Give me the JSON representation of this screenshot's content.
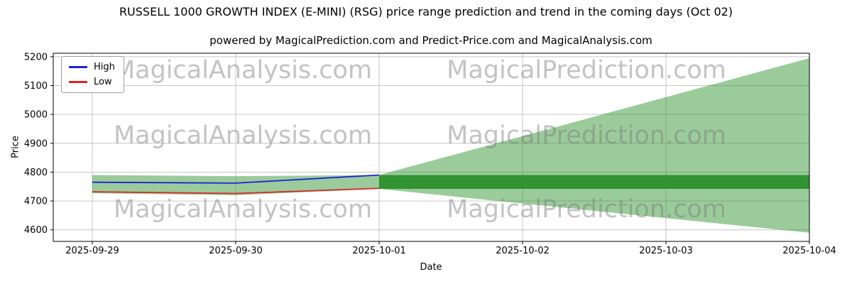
{
  "title": "RUSSELL 1000 GROWTH INDEX (E-MINI) (RSG) price range prediction and trend in the coming days (Oct 02)",
  "subtitle": "powered by MagicalPrediction.com and Predict-Price.com and MagicalAnalysis.com",
  "watermarks": {
    "left": "MagicalAnalysis.com",
    "right": "MagicalPrediction.com"
  },
  "colors": {
    "high_line": "#1c24d8",
    "low_line": "#d62728",
    "range_green": "#228b22",
    "grid": "#c6c6c6",
    "axis": "#000000"
  },
  "chart_data": {
    "type": "line",
    "xlabel": "Date",
    "ylabel": "Price",
    "x_labels": [
      "2025-09-29",
      "2025-09-30",
      "2025-10-01",
      "2025-10-02",
      "2025-10-03",
      "2025-10-04"
    ],
    "y_ticks": [
      4600,
      4700,
      4800,
      4900,
      5000,
      5100,
      5200
    ],
    "ylim": [
      4560,
      5212
    ],
    "grid": true,
    "legend_position": "upper left",
    "series": [
      {
        "name": "High",
        "color": "#1c24d8",
        "x": [
          0,
          1,
          2
        ],
        "values": [
          4765,
          4762,
          4790
        ]
      },
      {
        "name": "Low",
        "color": "#d62728",
        "x": [
          0,
          1,
          2
        ],
        "values": [
          4732,
          4726,
          4744
        ]
      }
    ],
    "bands": [
      {
        "name": "historical-range-band",
        "fill": "#228b22",
        "opacity": 0.45,
        "x": [
          0,
          1,
          2
        ],
        "upper": [
          4790,
          4786,
          4790
        ],
        "lower": [
          4727,
          4720,
          4742
        ]
      },
      {
        "name": "prediction-fan-band",
        "fill": "#228b22",
        "opacity": 0.45,
        "x": [
          2,
          5
        ],
        "upper": [
          4790,
          5195
        ],
        "lower": [
          4742,
          4590
        ]
      },
      {
        "name": "prediction-core-band",
        "fill": "#228b22",
        "opacity": 0.88,
        "x": [
          2,
          5
        ],
        "upper": [
          4790,
          4790
        ],
        "lower": [
          4742,
          4742
        ]
      }
    ]
  }
}
